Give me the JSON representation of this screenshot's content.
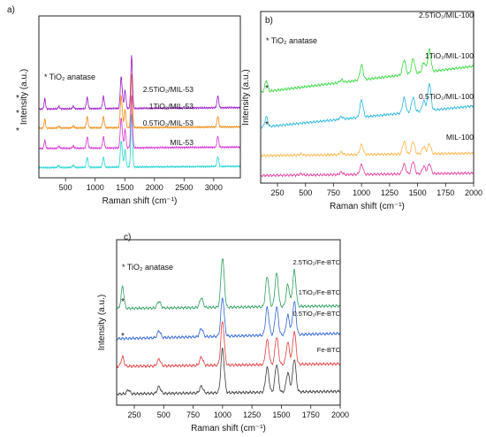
{
  "chart_data": [
    {
      "panel": "a)",
      "type": "line",
      "xlabel": "Raman shift (cm⁻¹)",
      "ylabel": "Intensity (a.u.)",
      "annotation": "* TiO₂ anatase",
      "xlim": [
        50,
        3450
      ],
      "xticks": [
        500,
        1000,
        1500,
        2000,
        2500,
        3000
      ],
      "grid": false,
      "legend": "labels above traces, right side",
      "series": [
        {
          "name": "MIL-53",
          "color": "#22d3d3",
          "offset": 0.0,
          "slope": 0.02,
          "anatase": false,
          "peaks": [
            [
              385,
              0.1
            ],
            [
              630,
              0.12
            ],
            [
              865,
              0.5
            ],
            [
              1140,
              0.5
            ],
            [
              1435,
              1.0
            ],
            [
              1455,
              0.6
            ],
            [
              1505,
              0.85
            ],
            [
              1615,
              2.6
            ],
            [
              3070,
              0.5
            ]
          ]
        },
        {
          "name": "0.5TiO₂/MIL-53",
          "color": "#d62fd6",
          "offset": 0.95,
          "slope": 0.02,
          "anatase": true,
          "peaks": [
            [
              150,
              0.4
            ],
            [
              385,
              0.1
            ],
            [
              630,
              0.12
            ],
            [
              865,
              0.55
            ],
            [
              1140,
              0.55
            ],
            [
              1435,
              1.2
            ],
            [
              1455,
              0.6
            ],
            [
              1505,
              0.9
            ],
            [
              1615,
              2.6
            ],
            [
              3070,
              0.55
            ]
          ]
        },
        {
          "name": "1TiO₂/MIL-53",
          "color": "#f08a12",
          "offset": 1.95,
          "slope": 0.02,
          "anatase": true,
          "peaks": [
            [
              150,
              0.45
            ],
            [
              385,
              0.1
            ],
            [
              630,
              0.12
            ],
            [
              865,
              0.55
            ],
            [
              1140,
              0.55
            ],
            [
              1435,
              1.3
            ],
            [
              1455,
              0.6
            ],
            [
              1505,
              0.9
            ],
            [
              1615,
              2.6
            ],
            [
              3070,
              0.55
            ]
          ]
        },
        {
          "name": "2.5TiO₂/MIL-53",
          "color": "#9a16c9",
          "offset": 2.9,
          "slope": 0.02,
          "anatase": true,
          "peaks": [
            [
              150,
              0.5
            ],
            [
              385,
              0.1
            ],
            [
              630,
              0.12
            ],
            [
              865,
              0.55
            ],
            [
              1140,
              0.6
            ],
            [
              1435,
              1.3
            ],
            [
              1455,
              0.6
            ],
            [
              1505,
              0.9
            ],
            [
              1615,
              2.6
            ],
            [
              3070,
              0.6
            ]
          ]
        }
      ]
    },
    {
      "panel": "b)",
      "type": "line",
      "xlabel": "Raman shift (cm⁻¹)",
      "ylabel": "Intensity (a.u.)",
      "annotation": "* TiO₂ anatase",
      "xlim": [
        100,
        2000
      ],
      "xticks": [
        250,
        500,
        750,
        1000,
        1250,
        1500,
        1750,
        2000
      ],
      "grid": false,
      "legend": "labels above traces, right side",
      "series": [
        {
          "name": "MIL-100",
          "color": "#e0399a",
          "offset": 0.0,
          "slope": 0.05,
          "anatase": false,
          "peaks": [
            [
              460,
              0.05
            ],
            [
              820,
              0.1
            ],
            [
              1000,
              0.4
            ],
            [
              1380,
              0.4
            ],
            [
              1460,
              0.5
            ],
            [
              1555,
              0.3
            ],
            [
              1605,
              0.4
            ]
          ]
        },
        {
          "name": "0.5TiO₂/MIL-100",
          "color": "#ffb347",
          "offset": 0.8,
          "slope": 0.05,
          "anatase": false,
          "peaks": [
            [
              460,
              0.05
            ],
            [
              820,
              0.1
            ],
            [
              1000,
              0.4
            ],
            [
              1380,
              0.5
            ],
            [
              1460,
              0.5
            ],
            [
              1555,
              0.3
            ],
            [
              1605,
              0.4
            ]
          ]
        },
        {
          "name": "1TiO₂/MIL-100",
          "color": "#27b5e0",
          "offset": 1.9,
          "slope": 0.45,
          "anatase": true,
          "peaks": [
            [
              150,
              0.4
            ],
            [
              820,
              0.1
            ],
            [
              1000,
              0.7
            ],
            [
              1380,
              0.6
            ],
            [
              1460,
              0.6
            ],
            [
              1555,
              0.4
            ],
            [
              1605,
              1.1
            ]
          ]
        },
        {
          "name": "2.5TiO₂/MIL-100",
          "color": "#32d93c",
          "offset": 3.3,
          "slope": 0.55,
          "anatase": true,
          "peaks": [
            [
              150,
              0.45
            ],
            [
              820,
              0.1
            ],
            [
              1000,
              0.6
            ],
            [
              1380,
              0.6
            ],
            [
              1460,
              0.6
            ],
            [
              1555,
              0.4
            ],
            [
              1605,
              0.9
            ]
          ]
        }
      ]
    },
    {
      "panel": "c)",
      "type": "line",
      "xlabel": "Raman shift (cm⁻¹)",
      "ylabel": "Intensity (a.u.)",
      "annotation": "* TiO₂ anatase",
      "xlim": [
        100,
        2000
      ],
      "xticks": [
        250,
        500,
        750,
        1000,
        1250,
        1500,
        1750,
        2000
      ],
      "grid": false,
      "legend": "labels above traces, right side",
      "series": [
        {
          "name": "Fe-BTC",
          "color": "#3a3a3a",
          "offset": 0.0,
          "slope": 0.05,
          "anatase": false,
          "peaks": [
            [
              200,
              0.15
            ],
            [
              460,
              0.25
            ],
            [
              820,
              0.25
            ],
            [
              1000,
              1.6
            ],
            [
              1380,
              0.9
            ],
            [
              1460,
              1.0
            ],
            [
              1555,
              0.7
            ],
            [
              1610,
              1.2
            ]
          ]
        },
        {
          "name": "0.5TiO₂/Fe-BTC",
          "color": "#e23b3b",
          "offset": 1.0,
          "slope": 0.05,
          "anatase": true,
          "peaks": [
            [
              150,
              0.35
            ],
            [
              460,
              0.25
            ],
            [
              820,
              0.3
            ],
            [
              1000,
              1.6
            ],
            [
              1380,
              0.9
            ],
            [
              1460,
              1.0
            ],
            [
              1555,
              0.8
            ],
            [
              1610,
              1.2
            ]
          ]
        },
        {
          "name": "1TiO₂/Fe-BTC",
          "color": "#2f64d6",
          "offset": 2.0,
          "slope": 0.1,
          "anatase": false,
          "peaks": [
            [
              460,
              0.25
            ],
            [
              820,
              0.3
            ],
            [
              1000,
              1.4
            ],
            [
              1380,
              1.0
            ],
            [
              1460,
              1.0
            ],
            [
              1555,
              0.7
            ],
            [
              1610,
              1.2
            ]
          ]
        },
        {
          "name": "2.5TiO₂/Fe-BTC",
          "color": "#2e9e5e",
          "offset": 3.1,
          "slope": 0.05,
          "anatase": true,
          "peaks": [
            [
              150,
              0.8
            ],
            [
              460,
              0.25
            ],
            [
              820,
              0.35
            ],
            [
              1000,
              1.8
            ],
            [
              1380,
              1.1
            ],
            [
              1460,
              1.2
            ],
            [
              1555,
              0.8
            ],
            [
              1610,
              1.3
            ]
          ]
        }
      ]
    }
  ]
}
